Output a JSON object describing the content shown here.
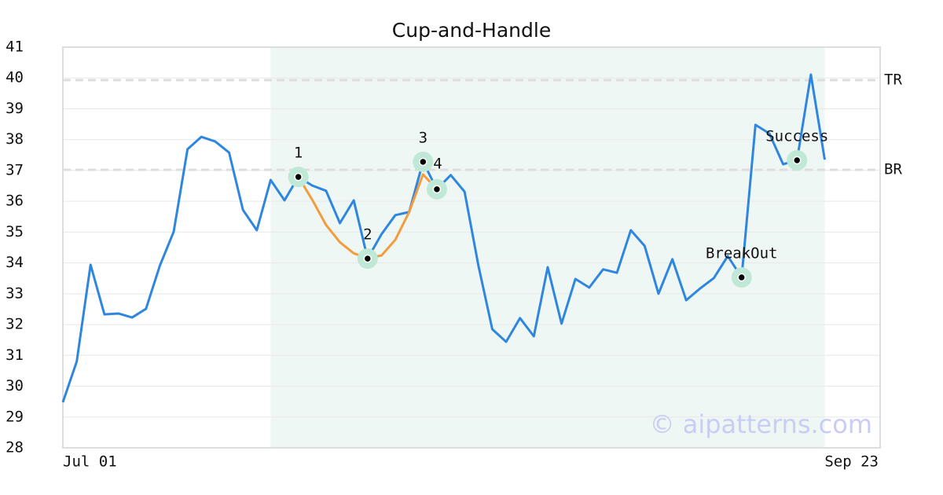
{
  "chart_data": {
    "type": "line",
    "title": "Cup-and-Handle",
    "x": [
      0,
      1,
      2,
      3,
      4,
      5,
      6,
      7,
      8,
      9,
      10,
      11,
      12,
      13,
      14,
      15,
      16,
      17,
      18,
      19,
      20,
      21,
      22,
      23,
      24,
      25,
      26,
      27,
      28,
      29,
      30,
      31,
      32,
      33,
      34,
      35,
      36,
      37,
      38,
      39,
      40,
      41,
      42,
      43,
      44,
      45,
      46,
      47,
      48,
      49,
      50,
      51,
      52,
      53,
      54,
      55
    ],
    "series": [
      {
        "color": "#2e86de",
        "values": [
          29.48,
          30.8,
          33.94,
          32.33,
          32.36,
          32.23,
          32.51,
          33.91,
          35.01,
          37.69,
          38.09,
          37.94,
          37.58,
          35.72,
          35.06,
          36.69,
          36.03,
          36.79,
          36.51,
          36.34,
          35.29,
          36.03,
          34.14,
          34.93,
          35.55,
          35.65,
          37.28,
          36.39,
          36.85,
          36.31,
          33.91,
          31.85,
          31.44,
          32.21,
          31.62,
          33.86,
          32.03,
          33.48,
          33.2,
          33.79,
          33.68,
          35.06,
          34.55,
          33.0,
          34.12,
          32.79,
          33.17,
          33.51,
          34.22,
          33.53,
          38.48,
          38.2,
          37.2,
          37.33,
          40.11,
          37.35
        ]
      },
      {
        "color": "#f39c3d",
        "values": [
          null,
          null,
          null,
          null,
          null,
          null,
          null,
          null,
          null,
          null,
          null,
          null,
          null,
          null,
          null,
          null,
          null,
          36.79,
          36.05,
          35.23,
          34.67,
          34.31,
          34.16,
          34.24,
          34.75,
          35.65,
          36.87,
          36.39,
          null,
          null,
          null,
          null,
          null,
          null,
          null,
          null,
          null,
          null,
          null,
          null,
          null,
          null,
          null,
          null,
          null,
          null,
          null,
          null,
          null,
          null,
          null,
          null,
          null,
          null,
          null,
          null
        ]
      }
    ],
    "annotations": [
      {
        "label": "1",
        "index": 17
      },
      {
        "label": "2",
        "index": 22
      },
      {
        "label": "3",
        "index": 26
      },
      {
        "label": "4",
        "index": 27
      },
      {
        "label": "BreakOut",
        "index": 49
      },
      {
        "label": "Success",
        "index": 53
      }
    ],
    "levels": [
      {
        "label": "TR",
        "value": 39.93
      },
      {
        "label": "BR",
        "value": 37.02
      }
    ],
    "highlight_range": [
      15,
      55
    ],
    "xlim": [
      0,
      59
    ],
    "xticks": [
      {
        "value": 0,
        "label": "Jul 01"
      },
      {
        "value": 59,
        "label": "Sep 23"
      }
    ],
    "ylim": [
      28,
      41
    ],
    "yticks": [
      28,
      29,
      30,
      31,
      32,
      33,
      34,
      35,
      36,
      37,
      38,
      39,
      40,
      41
    ],
    "grid": true,
    "watermark": "© aipatterns.com"
  }
}
